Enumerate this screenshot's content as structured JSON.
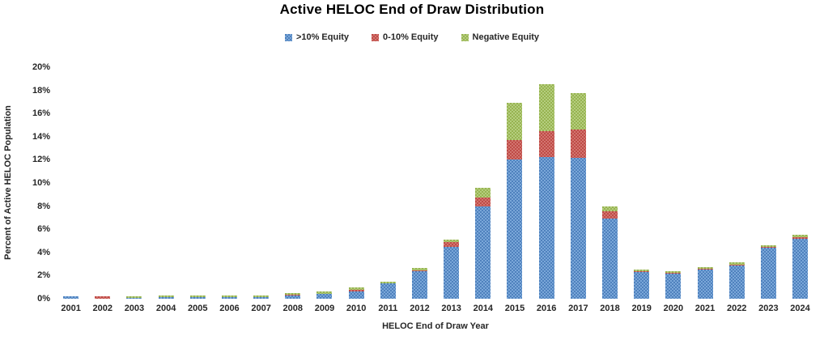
{
  "title": "Active HELOC End of Draw Distribution",
  "legend": [
    {
      "label": ">10% Equity",
      "color": "#4F81BD",
      "color_light": "#7AA7D9"
    },
    {
      "label": "0-10% Equity",
      "color": "#BE4B47",
      "color_light": "#D3756F"
    },
    {
      "label": "Negative Equity",
      "color": "#97B351",
      "color_light": "#B5CE7E"
    }
  ],
  "chart_data": {
    "type": "bar",
    "stacked": true,
    "title": "Active HELOC End of Draw Distribution",
    "xlabel": "HELOC End of Draw Year",
    "ylabel": "Percent of Active HELOC Population",
    "ylim": [
      0,
      20
    ],
    "ytick_step": 2,
    "ytick_labels": [
      "0%",
      "2%",
      "4%",
      "6%",
      "8%",
      "10%",
      "12%",
      "14%",
      "16%",
      "18%",
      "20%"
    ],
    "grid": false,
    "legend_position": "top-center",
    "categories": [
      "2001",
      "2002",
      "2003",
      "2004",
      "2005",
      "2006",
      "2007",
      "2008",
      "2009",
      "2010",
      "2011",
      "2012",
      "2013",
      "2014",
      "2015",
      "2016",
      "2017",
      "2018",
      "2019",
      "2020",
      "2021",
      "2022",
      "2023",
      "2024"
    ],
    "series": [
      {
        "name": ">10% Equity",
        "values": [
          0.2,
          0.0,
          0.05,
          0.15,
          0.15,
          0.15,
          0.15,
          0.3,
          0.4,
          0.65,
          1.3,
          2.4,
          4.5,
          8.0,
          12.0,
          12.25,
          12.2,
          6.9,
          2.3,
          2.2,
          2.55,
          2.9,
          4.4,
          5.2
        ]
      },
      {
        "name": "0-10% Equity",
        "values": [
          0.0,
          0.2,
          0.0,
          0.02,
          0.02,
          0.02,
          0.02,
          0.05,
          0.05,
          0.15,
          0.05,
          0.05,
          0.4,
          0.75,
          1.7,
          2.25,
          2.45,
          0.65,
          0.05,
          0.05,
          0.05,
          0.05,
          0.05,
          0.1
        ]
      },
      {
        "name": "Negative Equity",
        "values": [
          0.0,
          0.0,
          0.15,
          0.13,
          0.13,
          0.13,
          0.13,
          0.15,
          0.15,
          0.2,
          0.1,
          0.2,
          0.2,
          0.85,
          3.2,
          4.0,
          3.1,
          0.4,
          0.15,
          0.15,
          0.15,
          0.2,
          0.2,
          0.2
        ]
      }
    ]
  }
}
